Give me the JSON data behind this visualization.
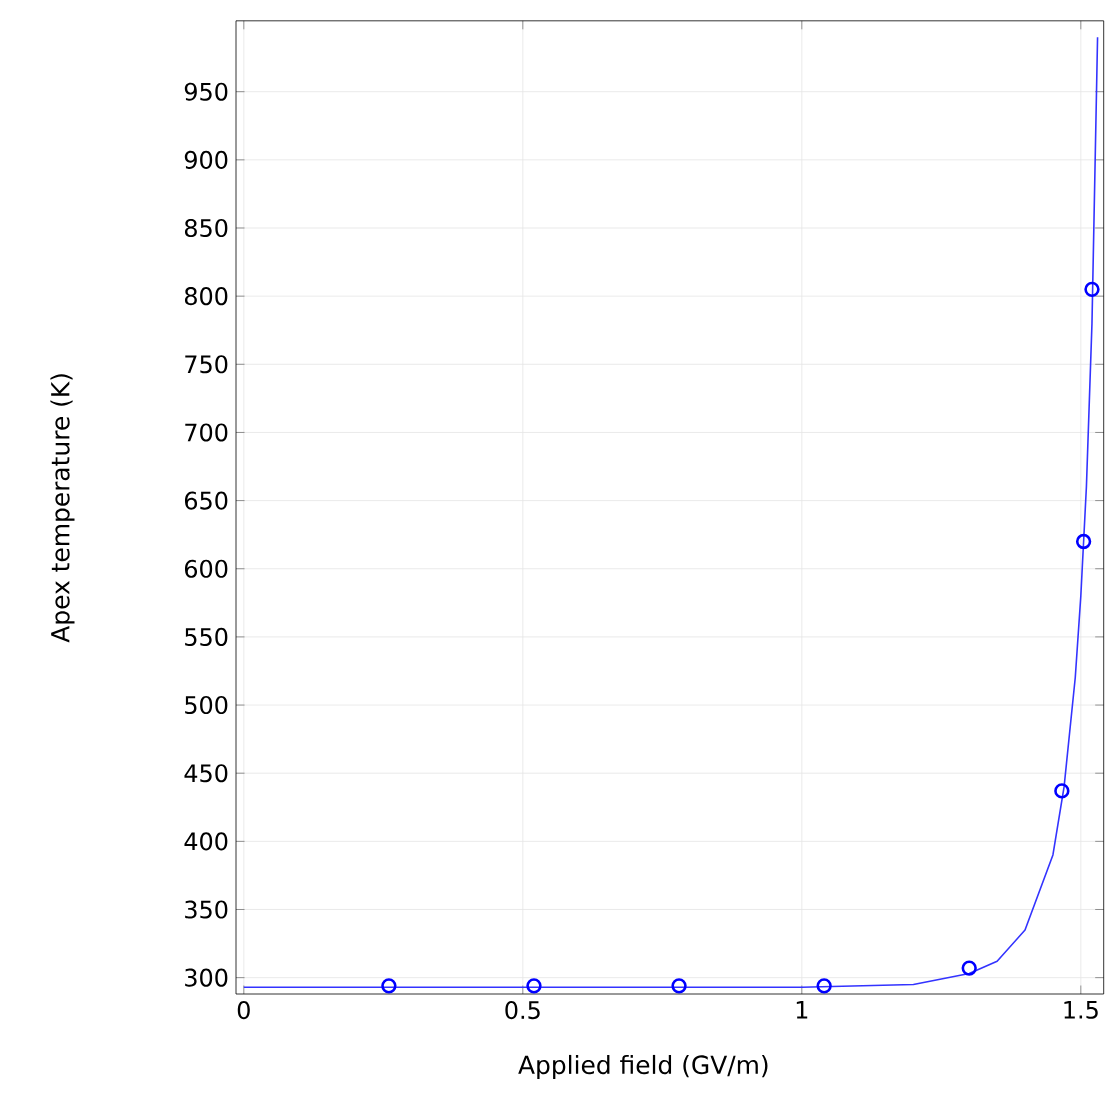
{
  "chart_data": {
    "type": "line",
    "xlabel": "Applied field (GV/m)",
    "ylabel": "Apex temperature (K)",
    "xlim": [
      -0.014,
      1.541
    ],
    "ylim": [
      288,
      1002
    ],
    "xticks": [
      0,
      0.5,
      1,
      1.5
    ],
    "yticks": [
      300,
      350,
      400,
      450,
      500,
      550,
      600,
      650,
      700,
      750,
      800,
      850,
      900,
      950
    ],
    "grid": true,
    "series": [
      {
        "type": "line",
        "color": "#3333ff",
        "marker": "none",
        "x": [
          0,
          0.5,
          1.0,
          1.2,
          1.3,
          1.35,
          1.4,
          1.45,
          1.47,
          1.49,
          1.5,
          1.51,
          1.52,
          1.53
        ],
        "values": [
          293,
          293,
          293,
          295,
          303,
          312,
          335,
          390,
          440,
          520,
          580,
          660,
          780,
          990
        ]
      },
      {
        "type": "scatter",
        "color": "#0000ff",
        "marker": "circle",
        "x": [
          0.26,
          0.52,
          0.78,
          1.04,
          1.3,
          1.466,
          1.505,
          1.52
        ],
        "values": [
          294,
          294,
          294,
          294,
          307,
          437,
          620,
          805
        ]
      }
    ]
  }
}
